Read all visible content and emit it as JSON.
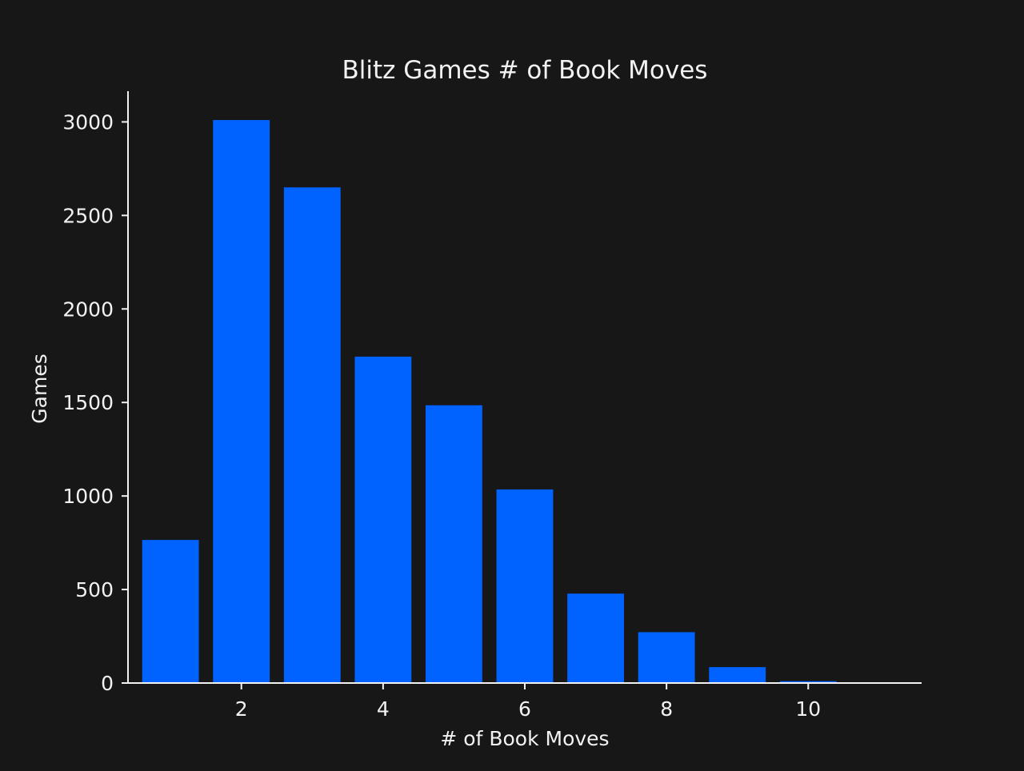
{
  "chart_data": {
    "type": "bar",
    "title": "Blitz Games # of Book Moves",
    "xlabel": "# of Book Moves",
    "ylabel": "Games",
    "x": [
      1,
      2,
      3,
      4,
      5,
      6,
      7,
      8,
      9,
      10
    ],
    "values": [
      765,
      3010,
      2650,
      1745,
      1485,
      1035,
      478,
      272,
      85,
      10
    ],
    "xlim": [
      0.4,
      11.6
    ],
    "ylim": [
      0,
      3160
    ],
    "xticks": [
      2,
      4,
      6,
      8,
      10
    ],
    "yticks": [
      0,
      500,
      1000,
      1500,
      2000,
      2500,
      3000
    ],
    "grid": false,
    "legend": "none",
    "colors": {
      "background": "#171717",
      "bar": "#0062ff",
      "axis": "#f2f2f2",
      "text": "#f2f2f2"
    }
  }
}
